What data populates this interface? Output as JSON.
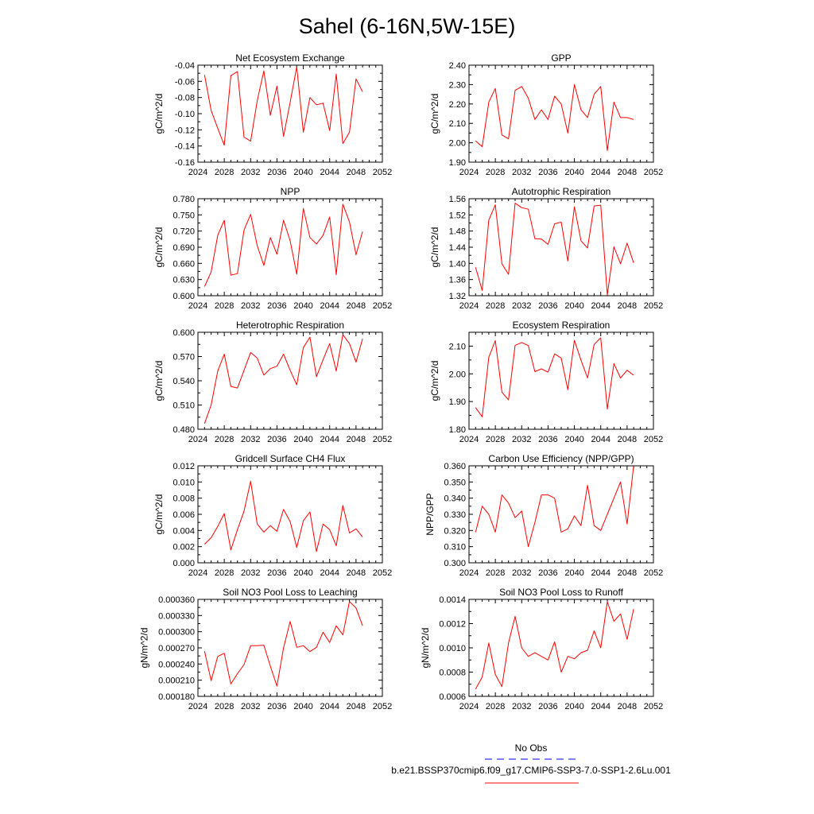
{
  "figure": {
    "title": "Sahel (6-16N,5W-15E)"
  },
  "legend": {
    "obs_label": "No Obs",
    "obs_color": "#0000ff",
    "model_label": "b.e21.BSSP370cmip6.f09_g17.CMIP6-SSP3-7.0-SSP1-2.6Lu.001",
    "model_color": "#ff0000"
  },
  "chart_data": [
    {
      "type": "line",
      "title": "Net Ecosystem Exchange",
      "ylabel": "gC/m^2/d",
      "xlim": [
        2024,
        2052
      ],
      "ylim": [
        -0.16,
        -0.04
      ],
      "xticks": [
        "2024",
        "2028",
        "2032",
        "2036",
        "2040",
        "2044",
        "2048",
        "2052"
      ],
      "yticks": [
        "-0.16",
        "-0.14",
        "-0.12",
        "-0.10",
        "-0.08",
        "-0.06",
        "-0.04"
      ],
      "x": [
        2025,
        2026,
        2027,
        2028,
        2029,
        2030,
        2031,
        2032,
        2033,
        2034,
        2035,
        2036,
        2037,
        2038,
        2039,
        2040,
        2041,
        2042,
        2043,
        2044,
        2045,
        2046,
        2047,
        2048,
        2049
      ],
      "series": [
        {
          "color": "#ff0000",
          "values": [
            -0.052,
            -0.096,
            -0.118,
            -0.139,
            -0.053,
            -0.048,
            -0.129,
            -0.134,
            -0.084,
            -0.047,
            -0.102,
            -0.066,
            -0.128,
            -0.086,
            -0.042,
            -0.123,
            -0.08,
            -0.089,
            -0.087,
            -0.121,
            -0.051,
            -0.137,
            -0.123,
            -0.057,
            -0.073
          ]
        }
      ]
    },
    {
      "type": "line",
      "title": "GPP",
      "ylabel": "gC/m^2/d",
      "xlim": [
        2024,
        2052
      ],
      "ylim": [
        1.9,
        2.4
      ],
      "xticks": [
        "2024",
        "2028",
        "2032",
        "2036",
        "2040",
        "2044",
        "2048",
        "2052"
      ],
      "yticks": [
        "1.90",
        "2.00",
        "2.10",
        "2.20",
        "2.30",
        "2.40"
      ],
      "x": [
        2025,
        2026,
        2027,
        2028,
        2029,
        2030,
        2031,
        2032,
        2033,
        2034,
        2035,
        2036,
        2037,
        2038,
        2039,
        2040,
        2041,
        2042,
        2043,
        2044,
        2045,
        2046,
        2047,
        2048,
        2049
      ],
      "series": [
        {
          "color": "#ff0000",
          "values": [
            2.01,
            1.98,
            2.21,
            2.28,
            2.04,
            2.02,
            2.27,
            2.29,
            2.23,
            2.12,
            2.17,
            2.12,
            2.24,
            2.2,
            2.05,
            2.3,
            2.17,
            2.13,
            2.25,
            2.29,
            1.96,
            2.21,
            2.13,
            2.13,
            2.12
          ]
        }
      ]
    },
    {
      "type": "line",
      "title": "NPP",
      "ylabel": "gC/m^2/d",
      "xlim": [
        2024,
        2052
      ],
      "ylim": [
        0.6,
        0.78
      ],
      "xticks": [
        "2024",
        "2028",
        "2032",
        "2036",
        "2040",
        "2044",
        "2048",
        "2052"
      ],
      "yticks": [
        "0.600",
        "0.630",
        "0.660",
        "0.690",
        "0.720",
        "0.750",
        "0.780"
      ],
      "x": [
        2025,
        2026,
        2027,
        2028,
        2029,
        2030,
        2031,
        2032,
        2033,
        2034,
        2035,
        2036,
        2037,
        2038,
        2039,
        2040,
        2041,
        2042,
        2043,
        2044,
        2045,
        2046,
        2047,
        2048,
        2049
      ],
      "series": [
        {
          "color": "#ff0000",
          "values": [
            0.617,
            0.644,
            0.712,
            0.74,
            0.638,
            0.641,
            0.722,
            0.751,
            0.693,
            0.656,
            0.708,
            0.677,
            0.74,
            0.702,
            0.64,
            0.762,
            0.708,
            0.696,
            0.712,
            0.746,
            0.639,
            0.77,
            0.737,
            0.676,
            0.719
          ]
        }
      ]
    },
    {
      "type": "line",
      "title": "Autotrophic Respiration",
      "ylabel": "gC/m^2/d",
      "xlim": [
        2024,
        2052
      ],
      "ylim": [
        1.32,
        1.56
      ],
      "xticks": [
        "2024",
        "2028",
        "2032",
        "2036",
        "2040",
        "2044",
        "2048",
        "2052"
      ],
      "yticks": [
        "1.32",
        "1.36",
        "1.40",
        "1.44",
        "1.48",
        "1.52",
        "1.56"
      ],
      "x": [
        2025,
        2026,
        2027,
        2028,
        2029,
        2030,
        2031,
        2032,
        2033,
        2034,
        2035,
        2036,
        2037,
        2038,
        2039,
        2040,
        2041,
        2042,
        2043,
        2044,
        2045,
        2046,
        2047,
        2048,
        2049
      ],
      "series": [
        {
          "color": "#ff0000",
          "values": [
            1.39,
            1.333,
            1.507,
            1.545,
            1.399,
            1.373,
            1.549,
            1.538,
            1.534,
            1.461,
            1.46,
            1.447,
            1.498,
            1.502,
            1.406,
            1.54,
            1.456,
            1.438,
            1.542,
            1.544,
            1.322,
            1.441,
            1.399,
            1.45,
            1.401
          ]
        }
      ]
    },
    {
      "type": "line",
      "title": "Heterotrophic Respiration",
      "ylabel": "gC/m^2/d",
      "xlim": [
        2024,
        2052
      ],
      "ylim": [
        0.48,
        0.6
      ],
      "xticks": [
        "2024",
        "2028",
        "2032",
        "2036",
        "2040",
        "2044",
        "2048",
        "2052"
      ],
      "yticks": [
        "0.480",
        "0.510",
        "0.540",
        "0.570",
        "0.600"
      ],
      "x": [
        2025,
        2026,
        2027,
        2028,
        2029,
        2030,
        2031,
        2032,
        2033,
        2034,
        2035,
        2036,
        2037,
        2038,
        2039,
        2040,
        2041,
        2042,
        2043,
        2044,
        2045,
        2046,
        2047,
        2048,
        2049
      ],
      "series": [
        {
          "color": "#ff0000",
          "values": [
            0.487,
            0.51,
            0.552,
            0.573,
            0.533,
            0.531,
            0.553,
            0.575,
            0.568,
            0.547,
            0.555,
            0.558,
            0.573,
            0.553,
            0.535,
            0.581,
            0.594,
            0.545,
            0.566,
            0.586,
            0.552,
            0.597,
            0.586,
            0.563,
            0.592
          ]
        }
      ]
    },
    {
      "type": "line",
      "title": "Ecosystem Respiration",
      "ylabel": "gC/m^2/d",
      "xlim": [
        2024,
        2052
      ],
      "ylim": [
        1.8,
        2.15
      ],
      "xticks": [
        "2024",
        "2028",
        "2032",
        "2036",
        "2040",
        "2044",
        "2048",
        "2052"
      ],
      "yticks": [
        "1.80",
        "1.90",
        "2.00",
        "2.10"
      ],
      "x": [
        2025,
        2026,
        2027,
        2028,
        2029,
        2030,
        2031,
        2032,
        2033,
        2034,
        2035,
        2036,
        2037,
        2038,
        2039,
        2040,
        2041,
        2042,
        2043,
        2044,
        2045,
        2046,
        2047,
        2048,
        2049
      ],
      "series": [
        {
          "color": "#ff0000",
          "values": [
            1.878,
            1.845,
            2.06,
            2.12,
            1.934,
            1.906,
            2.103,
            2.113,
            2.102,
            2.008,
            2.018,
            2.006,
            2.072,
            2.057,
            1.943,
            2.121,
            2.049,
            1.985,
            2.106,
            2.13,
            1.873,
            2.037,
            1.985,
            2.013,
            1.995
          ]
        }
      ]
    },
    {
      "type": "line",
      "title": "Gridcell Surface CH4 Flux",
      "ylabel": "gC/m^2/d",
      "xlim": [
        2024,
        2052
      ],
      "ylim": [
        0.0,
        0.012
      ],
      "xticks": [
        "2024",
        "2028",
        "2032",
        "2036",
        "2040",
        "2044",
        "2048",
        "2052"
      ],
      "yticks": [
        "0.000",
        "0.002",
        "0.004",
        "0.006",
        "0.008",
        "0.010",
        "0.012"
      ],
      "x": [
        2025,
        2026,
        2027,
        2028,
        2029,
        2030,
        2031,
        2032,
        2033,
        2034,
        2035,
        2036,
        2037,
        2038,
        2039,
        2040,
        2041,
        2042,
        2043,
        2044,
        2045,
        2046,
        2047,
        2048,
        2049
      ],
      "series": [
        {
          "color": "#ff0000",
          "values": [
            0.0023,
            0.0031,
            0.0045,
            0.0061,
            0.0016,
            0.0041,
            0.0064,
            0.0101,
            0.0048,
            0.0038,
            0.0046,
            0.0039,
            0.0066,
            0.0051,
            0.0019,
            0.0052,
            0.0063,
            0.0014,
            0.0048,
            0.0041,
            0.0021,
            0.0071,
            0.0037,
            0.0042,
            0.0032
          ]
        }
      ]
    },
    {
      "type": "line",
      "title": "Carbon Use Efficiency (NPP/GPP)",
      "ylabel": "NPP/GPP",
      "xlim": [
        2024,
        2052
      ],
      "ylim": [
        0.3,
        0.36
      ],
      "xticks": [
        "2024",
        "2028",
        "2032",
        "2036",
        "2040",
        "2044",
        "2048",
        "2052"
      ],
      "yticks": [
        "0.300",
        "0.310",
        "0.320",
        "0.330",
        "0.340",
        "0.350",
        "0.360"
      ],
      "x": [
        2025,
        2026,
        2027,
        2028,
        2029,
        2030,
        2031,
        2032,
        2033,
        2034,
        2035,
        2036,
        2037,
        2038,
        2039,
        2040,
        2041,
        2042,
        2043,
        2044,
        2045,
        2046,
        2047,
        2048,
        2049
      ],
      "series": [
        {
          "color": "#ff0000",
          "values": [
            0.319,
            0.335,
            0.33,
            0.319,
            0.342,
            0.337,
            0.328,
            0.332,
            0.31,
            0.325,
            0.342,
            0.342,
            0.34,
            0.319,
            0.321,
            0.329,
            0.323,
            0.348,
            0.323,
            0.32,
            0.33,
            0.34,
            0.35,
            0.324,
            0.36
          ]
        }
      ]
    },
    {
      "type": "line",
      "title": "Soil NO3 Pool Loss to Leaching",
      "ylabel": "gN/m^2/d",
      "xlim": [
        2024,
        2052
      ],
      "ylim": [
        0.00018,
        0.00036
      ],
      "xticks": [
        "2024",
        "2028",
        "2032",
        "2036",
        "2040",
        "2044",
        "2048",
        "2052"
      ],
      "yticks": [
        "0.000180",
        "0.000210",
        "0.000240",
        "0.000270",
        "0.000300",
        "0.000330",
        "0.000360"
      ],
      "x": [
        2025,
        2026,
        2027,
        2028,
        2029,
        2030,
        2031,
        2032,
        2033,
        2034,
        2035,
        2036,
        2037,
        2038,
        2039,
        2040,
        2041,
        2042,
        2043,
        2044,
        2045,
        2046,
        2047,
        2048,
        2049
      ],
      "series": [
        {
          "color": "#ff0000",
          "values": [
            0.000264,
            0.000209,
            0.000254,
            0.00026,
            0.000203,
            0.000222,
            0.000239,
            0.000274,
            0.000274,
            0.000275,
            0.000236,
            0.000199,
            0.00027,
            0.000319,
            0.000271,
            0.000274,
            0.000263,
            0.000271,
            0.000299,
            0.00028,
            0.000311,
            0.000294,
            0.000356,
            0.000344,
            0.000311
          ]
        }
      ]
    },
    {
      "type": "line",
      "title": "Soil NO3 Pool Loss to Runoff",
      "ylabel": "gN/m^2/d",
      "xlim": [
        2024,
        2052
      ],
      "ylim": [
        0.0006,
        0.0014
      ],
      "xticks": [
        "2024",
        "2028",
        "2032",
        "2036",
        "2040",
        "2044",
        "2048",
        "2052"
      ],
      "yticks": [
        "0.0006",
        "0.0008",
        "0.0010",
        "0.0012",
        "0.0014"
      ],
      "x": [
        2025,
        2026,
        2027,
        2028,
        2029,
        2030,
        2031,
        2032,
        2033,
        2034,
        2035,
        2036,
        2037,
        2038,
        2039,
        2040,
        2041,
        2042,
        2043,
        2044,
        2045,
        2046,
        2047,
        2048,
        2049
      ],
      "series": [
        {
          "color": "#ff0000",
          "values": [
            0.00066,
            0.00076,
            0.00104,
            0.00078,
            0.00068,
            0.00104,
            0.00126,
            0.001,
            0.00093,
            0.00096,
            0.00093,
            0.0009,
            0.00105,
            0.0008,
            0.00093,
            0.00091,
            0.00096,
            0.00098,
            0.00114,
            0.001,
            0.00138,
            0.00122,
            0.00128,
            0.00107,
            0.00132
          ]
        }
      ]
    }
  ]
}
